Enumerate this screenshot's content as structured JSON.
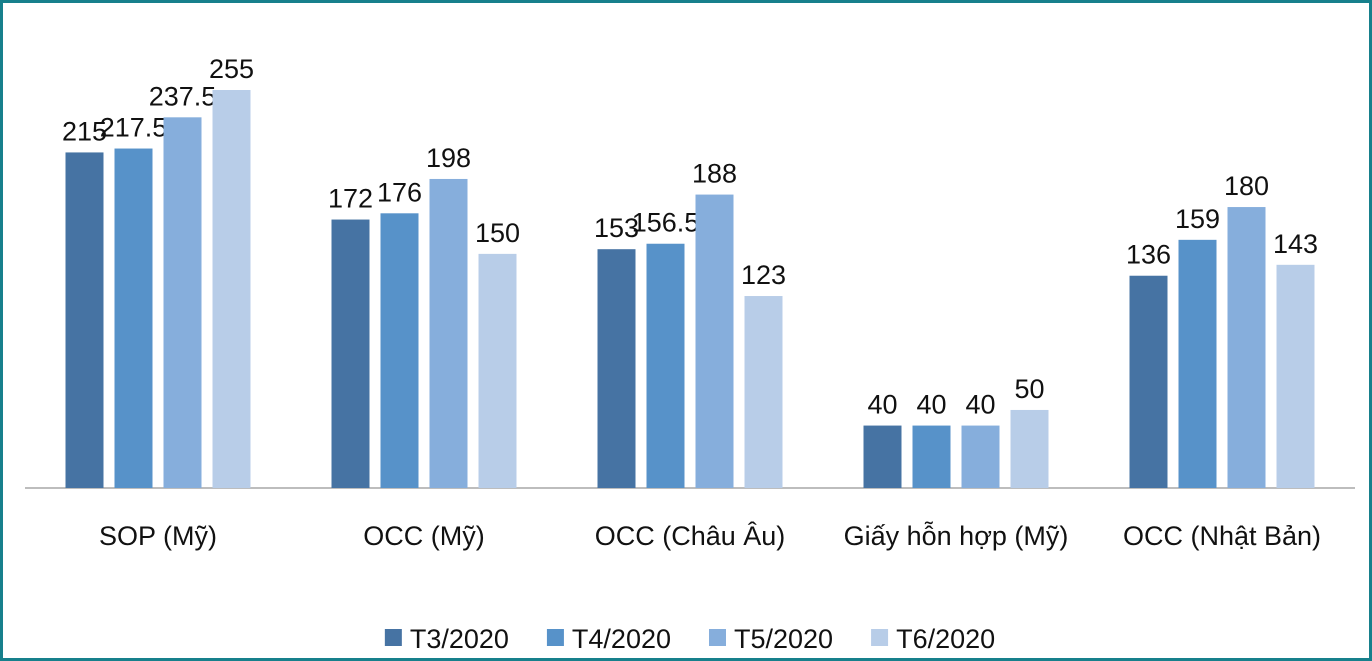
{
  "chart_data": {
    "type": "bar",
    "categories": [
      "SOP (Mỹ)",
      "OCC (Mỹ)",
      "OCC (Châu Âu)",
      "Giấy hỗn hợp (Mỹ)",
      "OCC (Nhật Bản)"
    ],
    "series": [
      {
        "name": "T3/2020",
        "color": "#4673a3",
        "values": [
          215,
          172,
          153,
          40,
          136
        ]
      },
      {
        "name": "T4/2020",
        "color": "#5792c9",
        "values": [
          217.5,
          176,
          156.5,
          40,
          159
        ]
      },
      {
        "name": "T5/2020",
        "color": "#86aedc",
        "values": [
          237.5,
          198,
          188,
          40,
          180
        ]
      },
      {
        "name": "T6/2020",
        "color": "#b8cde8",
        "values": [
          255,
          150,
          123,
          50,
          143
        ]
      }
    ],
    "legend": "bottom"
  }
}
